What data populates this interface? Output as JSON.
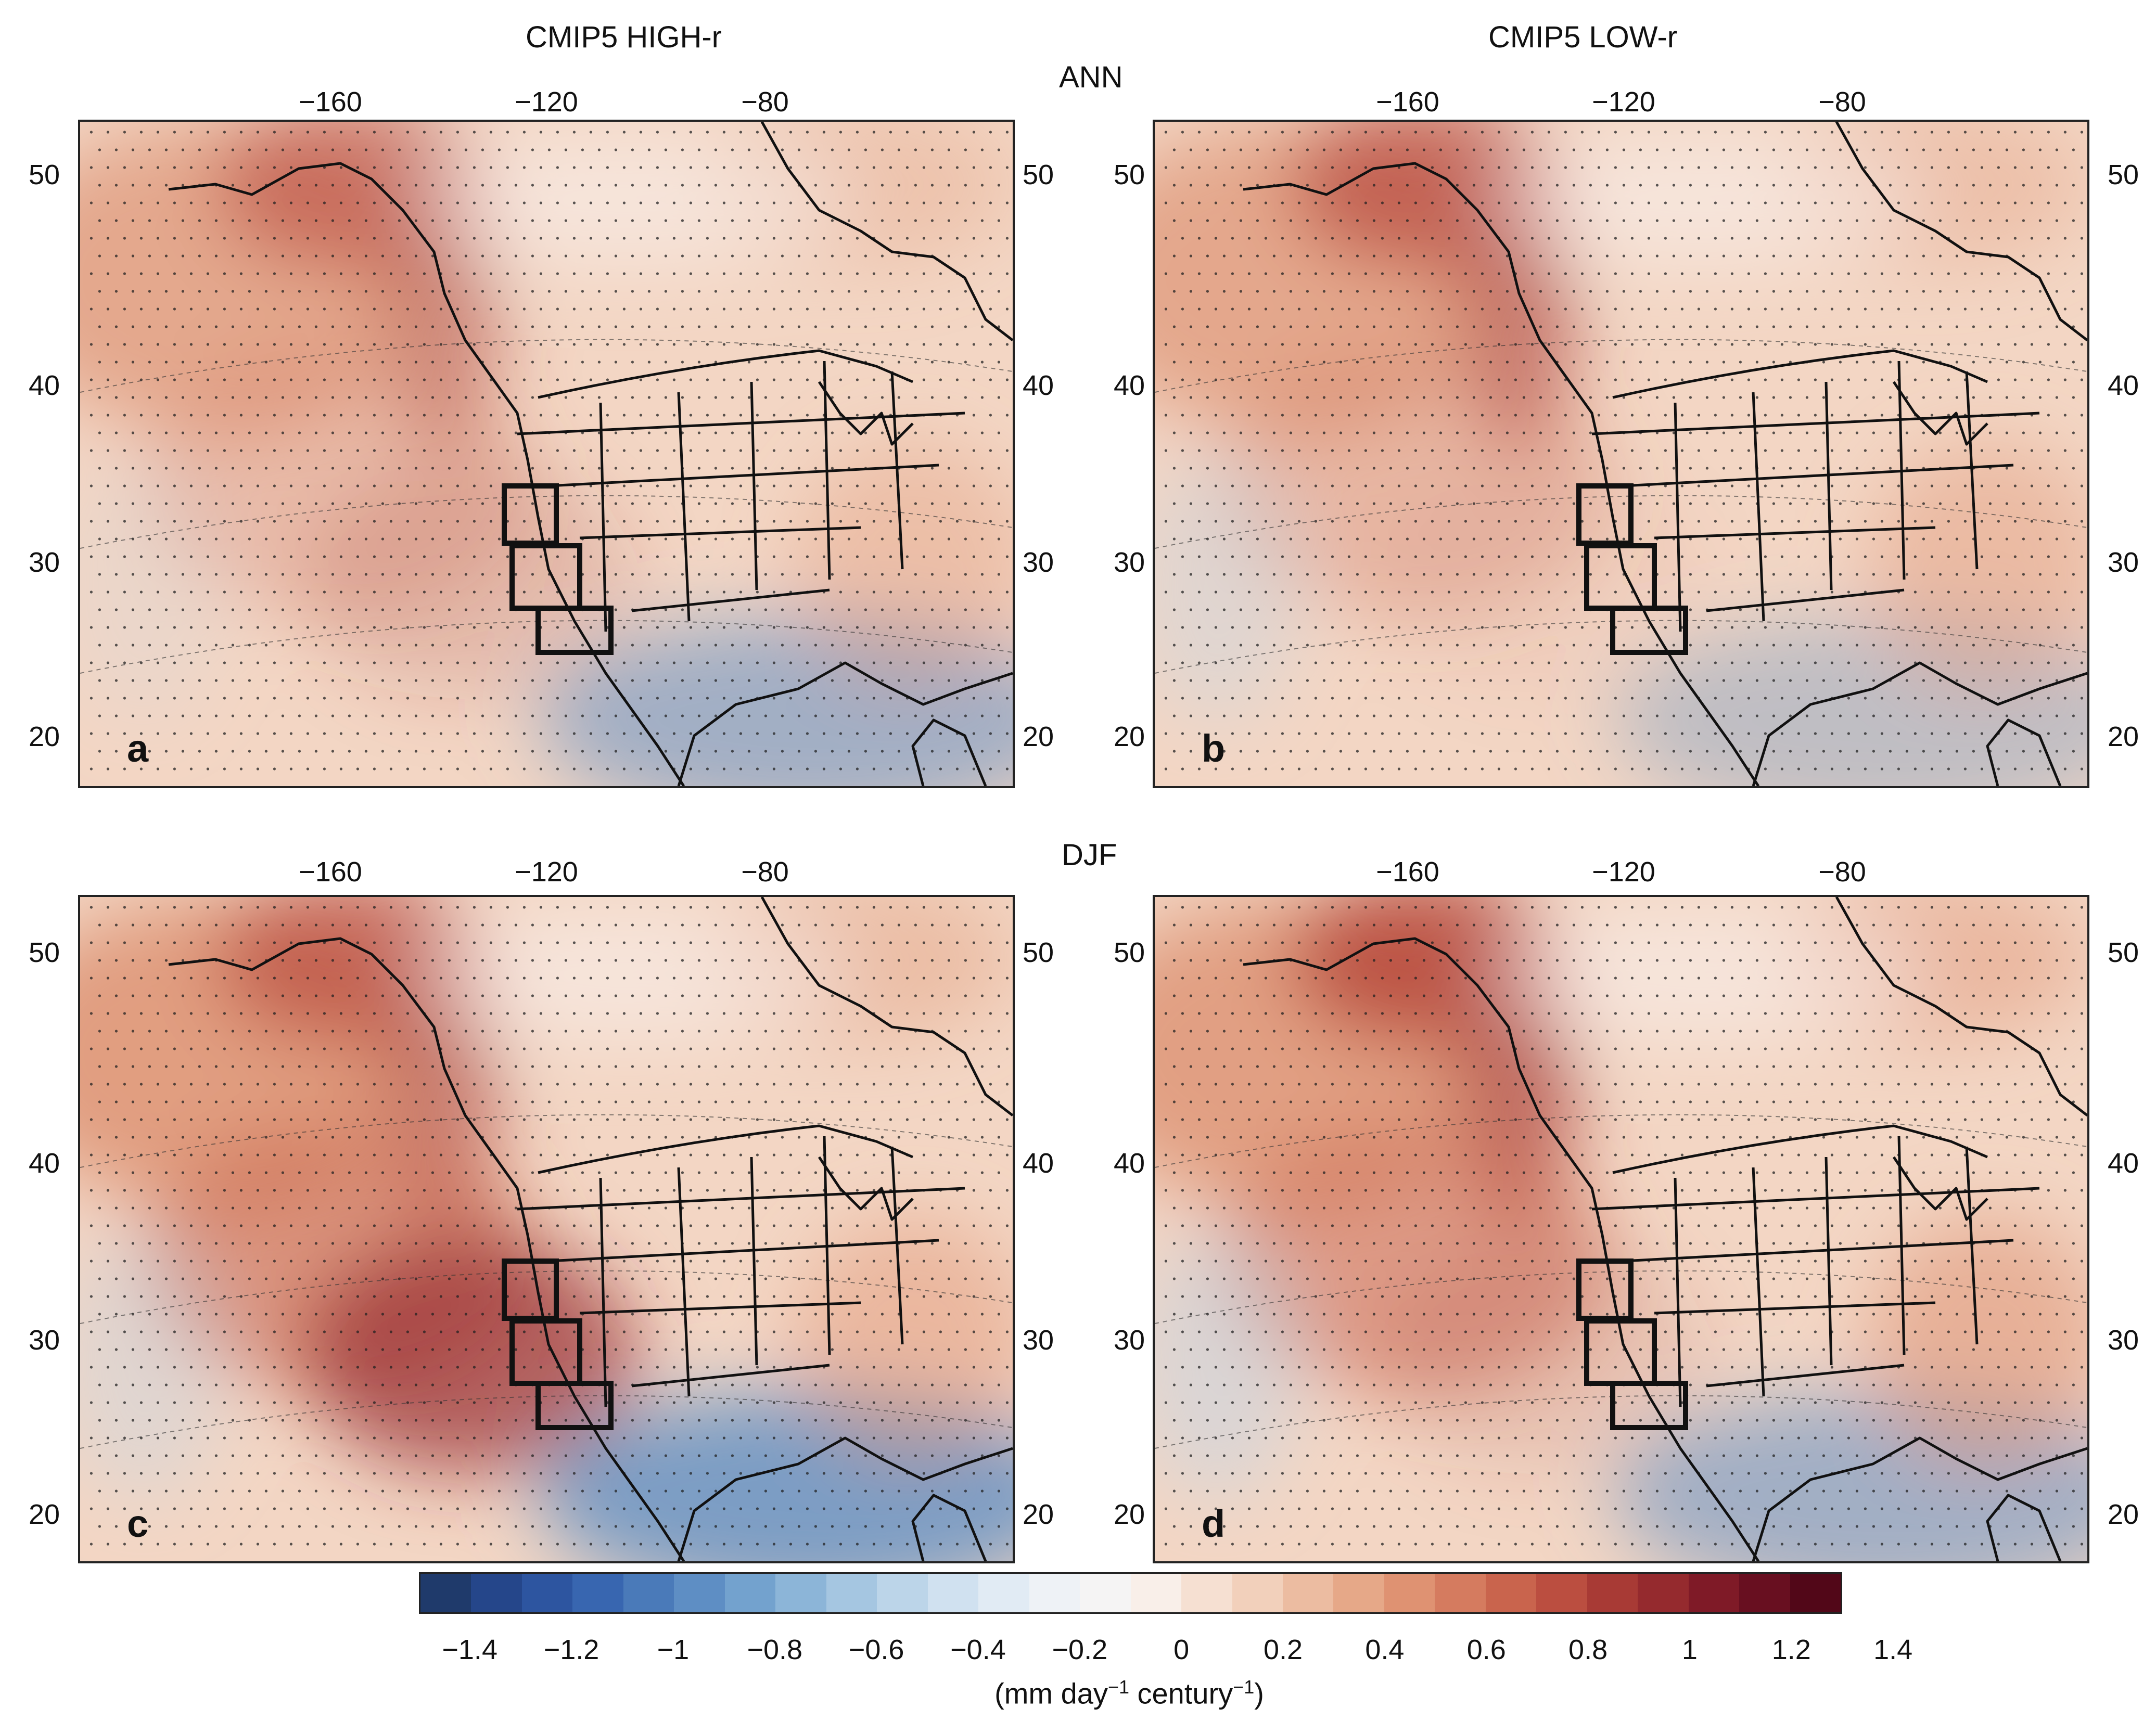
{
  "titles": {
    "left": "CMIP5 HIGH-r",
    "right": "CMIP5 LOW-r"
  },
  "seasons": {
    "top": "ANN",
    "bottom": "DJF"
  },
  "lon_ticks": [
    "−160",
    "−120",
    "−80"
  ],
  "lat_ticks": [
    "50",
    "40",
    "30",
    "20"
  ],
  "panels": [
    {
      "letter": "a",
      "column": "CMIP5 HIGH-r",
      "season": "ANN",
      "map": "precipitation-trend-map"
    },
    {
      "letter": "b",
      "column": "CMIP5 LOW-r",
      "season": "ANN",
      "map": "precipitation-trend-map"
    },
    {
      "letter": "c",
      "column": "CMIP5 HIGH-r",
      "season": "DJF",
      "map": "precipitation-trend-map"
    },
    {
      "letter": "d",
      "column": "CMIP5 LOW-r",
      "season": "DJF",
      "map": "precipitation-trend-map"
    }
  ],
  "colorbar": {
    "ticks": [
      "−1.4",
      "−1.2",
      "−1",
      "−0.8",
      "−0.6",
      "−0.4",
      "−0.2",
      "0",
      "0.2",
      "0.4",
      "0.6",
      "0.8",
      "1",
      "1.2",
      "1.4"
    ],
    "unit_main": "(mm day",
    "unit_sup1": "−1",
    "unit_mid": " century",
    "unit_sup2": "−1",
    "unit_end": ")",
    "colors": [
      "#1f3a6b",
      "#25468a",
      "#2d55a0",
      "#3866b0",
      "#4a7ab9",
      "#5e8ec4",
      "#73a2ce",
      "#8cb5d8",
      "#a5c6e1",
      "#bcd5e9",
      "#d0e1f0",
      "#e1ebf4",
      "#eef2f6",
      "#f5f4f4",
      "#f9efe9",
      "#f6e0d2",
      "#f2d0bb",
      "#ecbca1",
      "#e6a888",
      "#df9272",
      "#d57b5f",
      "#c9644d",
      "#bb4e40",
      "#a83a35",
      "#952a2e",
      "#7f1a27",
      "#680f20",
      "#520718"
    ]
  }
}
